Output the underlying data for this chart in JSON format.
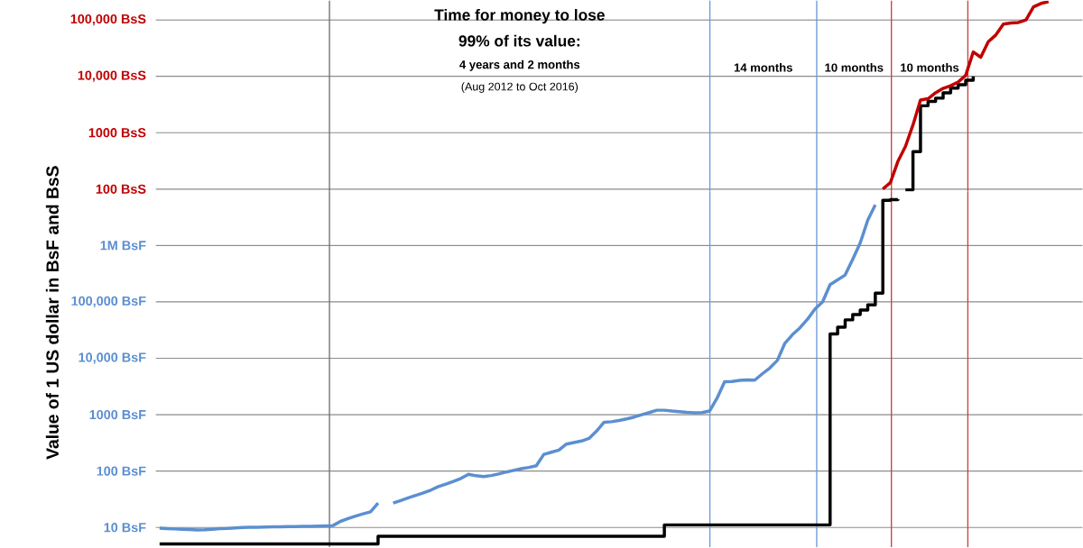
{
  "chart_data": [
    {
      "type": "line",
      "annotations": [
        "Time for money to lose",
        "99% of its value:",
        "4 years and 2 months",
        "(Aug 2012 to Oct 2016)",
        "14 months",
        "10 months",
        "10 months"
      ],
      "categories": [
        null,
        null,
        null,
        null,
        null,
        null,
        null,
        null,
        null,
        null,
        null,
        null,
        null,
        null,
        null,
        null,
        null,
        null,
        null,
        null,
        null,
        null,
        null,
        null,
        null,
        null,
        null,
        null,
        null,
        null,
        null,
        null,
        null,
        null,
        null,
        null,
        null,
        null,
        null,
        null,
        null,
        null,
        null,
        null,
        null,
        null,
        null,
        null,
        null,
        null,
        null,
        null,
        null,
        null,
        null,
        null,
        null,
        null,
        null,
        null,
        null,
        null,
        null,
        null,
        null,
        null,
        null,
        null,
        null,
        null,
        null,
        null,
        null,
        null,
        null,
        null,
        null,
        null,
        null,
        null,
        null,
        null,
        null,
        null,
        null,
        null,
        null,
        null,
        null,
        null,
        null,
        null,
        null,
        null,
        null,
        null,
        null,
        null,
        null,
        null,
        null,
        null,
        null,
        null,
        null,
        null,
        null,
        null,
        null,
        null,
        null,
        null,
        null,
        null,
        null,
        null,
        null,
        null,
        null,
        null,
        null,
        null,
        null
      ],
      "series": [
        {
          "type": "step",
          "color": "#000000",
          "values": [
            null,
            null,
            null,
            null,
            null,
            null,
            null,
            null,
            null,
            null,
            null,
            null,
            null,
            null,
            null,
            null,
            null,
            null,
            null,
            null,
            null,
            null,
            null,
            null,
            null,
            null,
            null,
            null,
            null,
            null,
            null,
            null,
            null,
            null,
            null,
            null,
            null,
            null,
            null,
            null,
            null,
            null,
            null,
            null,
            null,
            null,
            null,
            null,
            null,
            null,
            null,
            null,
            null,
            null,
            null,
            null,
            null,
            null,
            null,
            null,
            null,
            null,
            null,
            null,
            null,
            null,
            null,
            null,
            null,
            null,
            null,
            null,
            null,
            null,
            null,
            null,
            null,
            null,
            null,
            null,
            null,
            null,
            null,
            null,
            null,
            null,
            null,
            null,
            null,
            null,
            null,
            null,
            null,
            null,
            null,
            null,
            null,
            null,
            null,
            97,
            460,
            3000,
            3600,
            4100,
            5100,
            6200,
            7100,
            8500,
            10000,
            null,
            null,
            null,
            null,
            null,
            null,
            null,
            null,
            null,
            null,
            null,
            null,
            null,
            null
          ]
        },
        {
          "color": "#c00000",
          "values": [
            null,
            null,
            null,
            null,
            null,
            null,
            null,
            null,
            null,
            null,
            null,
            null,
            null,
            null,
            null,
            null,
            null,
            null,
            null,
            null,
            null,
            null,
            null,
            null,
            null,
            null,
            null,
            null,
            null,
            null,
            null,
            null,
            null,
            null,
            null,
            null,
            null,
            null,
            null,
            null,
            null,
            null,
            null,
            null,
            null,
            null,
            null,
            null,
            null,
            null,
            null,
            null,
            null,
            null,
            null,
            null,
            null,
            null,
            null,
            null,
            null,
            null,
            null,
            null,
            null,
            null,
            null,
            null,
            null,
            null,
            null,
            null,
            null,
            null,
            null,
            null,
            null,
            null,
            null,
            null,
            null,
            null,
            null,
            null,
            null,
            null,
            null,
            null,
            null,
            null,
            null,
            null,
            null,
            null,
            null,
            null,
            100,
            130,
            310,
            570,
            1370,
            3800,
            4000,
            5100,
            6100,
            6800,
            7900,
            10400,
            27000,
            21800,
            41000,
            54000,
            84000,
            88000,
            90000,
            100000,
            170000,
            196000,
            210000,
            null,
            null,
            null,
            null
          ]
        }
      ],
      "ylim": [
        90,
        220000
      ],
      "yticks": [
        {
          "value": 100,
          "label": "100 BsS"
        },
        {
          "value": 1000,
          "label": "1000 BsS"
        },
        {
          "value": 10000,
          "label": "10,000 BsS"
        },
        {
          "value": 100000,
          "label": "100,000 BsS"
        }
      ],
      "log": "y",
      "grid": "y",
      "tick_labels": "y"
    },
    {
      "type": "line",
      "ylabel": "Value of 1 US dollar in BsF and BsS",
      "categories": [
        null,
        null,
        null,
        null,
        null,
        null,
        null,
        null,
        null,
        null,
        null,
        null,
        null,
        null,
        null,
        null,
        null,
        null,
        null,
        null,
        null,
        null,
        null,
        null,
        null,
        null,
        null,
        null,
        null,
        null,
        null,
        null,
        null,
        null,
        null,
        null,
        null,
        null,
        null,
        null,
        null,
        null,
        null,
        null,
        null,
        null,
        null,
        null,
        null,
        null,
        null,
        null,
        null,
        null,
        null,
        null,
        null,
        null,
        null,
        null,
        null,
        null,
        null,
        null,
        null,
        null,
        null,
        null,
        null,
        null,
        null,
        null,
        null,
        null,
        null,
        null,
        null,
        null,
        null,
        null,
        null,
        null,
        null,
        null,
        null,
        null,
        null,
        null,
        null,
        null,
        null,
        null,
        null,
        null,
        null,
        null,
        null,
        null,
        null,
        null,
        null,
        null,
        null,
        null,
        null,
        null,
        null,
        null,
        null,
        null,
        null,
        null,
        null,
        null,
        null,
        null,
        null,
        null,
        null,
        null,
        null,
        null,
        null
      ],
      "series": [
        {
          "color": "#5b8fd0",
          "values": [
            9.7,
            9.5,
            9.4,
            9.3,
            9.2,
            9.0,
            9.1,
            9.3,
            9.5,
            9.6,
            9.8,
            10,
            10.1,
            10.1,
            10.2,
            10.3,
            10.3,
            10.4,
            10.4,
            10.5,
            10.5,
            10.6,
            10.7,
            10.8,
            12.8,
            14.3,
            15.9,
            17.4,
            18.9,
            27,
            null,
            27,
            30,
            33.4,
            37,
            41,
            45.9,
            52.9,
            58.7,
            65.4,
            74,
            87.7,
            82.6,
            79.7,
            83.2,
            88.9,
            96.2,
            103,
            110,
            116,
            124,
            198,
            216,
            235,
            301,
            320,
            341,
            379,
            512,
            735,
            750,
            789,
            841,
            908,
            996,
            1090,
            1200,
            1200,
            1160,
            1130,
            1100,
            1080,
            1090,
            1160,
            1970,
            3840,
            3870,
            4070,
            4150,
            4100,
            5300,
            6730,
            9160,
            18500,
            26200,
            34700,
            49200,
            75300,
            100000,
            203000,
            246000,
            300000,
            568000,
            1110000,
            2810000,
            5280000,
            null,
            null,
            null,
            null,
            null,
            null,
            null,
            null,
            null,
            null,
            null,
            null,
            null,
            null,
            null,
            null,
            null,
            null,
            null,
            null,
            null,
            null,
            null,
            null,
            null,
            null,
            null
          ]
        },
        {
          "type": "step",
          "color": "#000000",
          "values": [
            5.1,
            5.1,
            5.1,
            5.1,
            5.1,
            5.1,
            5.1,
            5.1,
            5.1,
            5.1,
            5.1,
            5.1,
            5.1,
            5.1,
            5.1,
            5.1,
            5.1,
            5.1,
            5.1,
            5.1,
            5.1,
            5.1,
            5.1,
            5.1,
            5.1,
            5.1,
            5.1,
            5.1,
            5.1,
            7.0,
            7.0,
            7.0,
            7.0,
            7.0,
            7.0,
            7.0,
            7.0,
            7.0,
            7.0,
            7.0,
            7.0,
            7.0,
            7.0,
            7.0,
            7.0,
            7.0,
            7.0,
            7.0,
            7.0,
            7.0,
            7.0,
            7.0,
            7.0,
            7.0,
            7.0,
            7.0,
            7.0,
            7.0,
            7.0,
            7.0,
            7.0,
            7.0,
            7.0,
            7.0,
            7.0,
            7.0,
            7.0,
            11.1,
            11.1,
            11.1,
            11.1,
            11.1,
            11.1,
            11.1,
            11.1,
            11.1,
            11.1,
            11.1,
            11.1,
            11.1,
            11.1,
            11.1,
            11.1,
            11.1,
            11.1,
            11.1,
            11.1,
            11.1,
            11.1,
            27000,
            35500,
            48000,
            59400,
            71400,
            88300,
            143000,
            6300000,
            6500000,
            6600000,
            null,
            null,
            null,
            null,
            null,
            null,
            null,
            null,
            null,
            null,
            null,
            null,
            null,
            null,
            null,
            null,
            null,
            null,
            null,
            null,
            null,
            null,
            null,
            null
          ]
        }
      ],
      "ylim": [
        4.5,
        9000000
      ],
      "yticks": [
        {
          "value": 10,
          "label": "10 BsF"
        },
        {
          "value": 100,
          "label": "100 BsF"
        },
        {
          "value": 1000,
          "label": "1000 BsF"
        },
        {
          "value": 10000,
          "label": "10,000 BsF"
        },
        {
          "value": 100000,
          "label": "100,000 BsF"
        },
        {
          "value": 1000000,
          "label": "1M BsF"
        }
      ],
      "log": "y",
      "grid": "y",
      "tick_labels": "y"
    }
  ]
}
